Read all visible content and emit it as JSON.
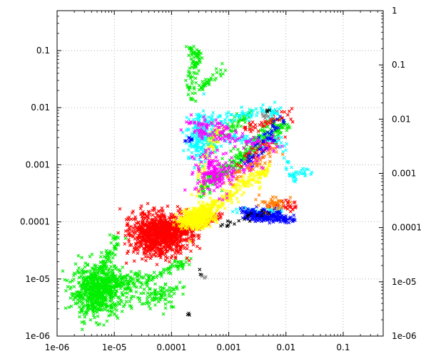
{
  "chart_data": {
    "type": "scatter",
    "x_scale": "log",
    "y_scale": "log",
    "y2_scale": "log",
    "xlim": [
      1e-06,
      0.5
    ],
    "ylim": [
      1e-06,
      0.5
    ],
    "y2lim": [
      1e-06,
      1
    ],
    "grid": true,
    "grid_style": "dotted",
    "legend": "none",
    "x_ticks": [
      {
        "value": 1e-06,
        "label": "1e-06"
      },
      {
        "value": 1e-05,
        "label": "1e-05"
      },
      {
        "value": 0.0001,
        "label": "0.0001"
      },
      {
        "value": 0.001,
        "label": "0.001"
      },
      {
        "value": 0.01,
        "label": "0.01"
      },
      {
        "value": 0.1,
        "label": "0.1"
      }
    ],
    "y_ticks": [
      {
        "value": 1e-06,
        "label": "1e-06"
      },
      {
        "value": 1e-05,
        "label": "1e-05"
      },
      {
        "value": 0.0001,
        "label": "0.0001"
      },
      {
        "value": 0.001,
        "label": "0.001"
      },
      {
        "value": 0.01,
        "label": "0.01"
      },
      {
        "value": 0.1,
        "label": "0.1"
      }
    ],
    "y2_ticks": [
      {
        "value": 1e-06,
        "label": "1e-06"
      },
      {
        "value": 1e-05,
        "label": "1e-05"
      },
      {
        "value": 0.0001,
        "label": "0.0001"
      },
      {
        "value": 0.001,
        "label": "0.001"
      },
      {
        "value": 0.01,
        "label": "0.01"
      },
      {
        "value": 0.1,
        "label": "0.1"
      },
      {
        "value": 1,
        "label": "1"
      }
    ],
    "series": [
      {
        "color": "#00ee00",
        "clusters": [
          {
            "cx": 5e-06,
            "cy": 6e-06,
            "sx": 0.22,
            "sy": 0.22,
            "n": 650
          },
          {
            "cx": 1.1e-05,
            "cy": 9e-06,
            "sx": 0.25,
            "sy": 0.1,
            "n": 120
          },
          {
            "cx": 6e-05,
            "cy": 5e-06,
            "sx": 0.2,
            "sy": 0.12,
            "n": 60
          }
        ],
        "paths": [
          {
            "points": [
              [
                3e-06,
                6e-06
              ],
              [
                6e-06,
                1.5e-05
              ],
              [
                9e-06,
                3e-05
              ],
              [
                1.2e-05,
                6e-05
              ]
            ],
            "n": 80,
            "jitter": 0.05
          },
          {
            "points": [
              [
                7e-06,
                7e-06
              ],
              [
                3e-05,
                9e-06
              ],
              [
                0.0001,
                1.5e-05
              ],
              [
                0.00022,
                2.2e-05
              ]
            ],
            "n": 90,
            "jitter": 0.05
          },
          {
            "points": [
              [
                1e-05,
                4e-06
              ],
              [
                5e-05,
                5e-06
              ],
              [
                0.00015,
                8e-06
              ]
            ],
            "n": 40,
            "jitter": 0.05
          },
          {
            "points": [
              [
                0.00022,
                0.11
              ],
              [
                0.00026,
                0.09
              ],
              [
                0.00028,
                0.07
              ],
              [
                0.00025,
                0.05
              ],
              [
                0.00022,
                0.03
              ],
              [
                0.00024,
                0.015
              ]
            ],
            "n": 90,
            "jitter": 0.05
          },
          {
            "points": [
              [
                0.0003,
                0.02
              ],
              [
                0.0005,
                0.035
              ],
              [
                0.0008,
                0.05
              ]
            ],
            "n": 35,
            "jitter": 0.04
          },
          {
            "points": [
              [
                0.0003,
                0.0004
              ],
              [
                0.0015,
                0.0012
              ],
              [
                0.005,
                0.003
              ],
              [
                0.011,
                0.005
              ]
            ],
            "n": 160,
            "jitter": 0.07
          },
          {
            "points": [
              [
                0.0003,
                0.0003
              ],
              [
                0.001,
                0.0009
              ],
              [
                0.003,
                0.0025
              ],
              [
                0.007,
                0.006
              ]
            ],
            "n": 120,
            "jitter": 0.07
          },
          {
            "points": [
              [
                0.0004,
                0.0025
              ],
              [
                0.001,
                0.0045
              ],
              [
                0.0025,
                0.008
              ]
            ],
            "n": 70,
            "jitter": 0.06
          }
        ]
      },
      {
        "color": "#ff0000",
        "clusters": [
          {
            "cx": 6e-05,
            "cy": 6e-05,
            "sx": 0.25,
            "sy": 0.18,
            "n": 900
          },
          {
            "cx": 0.00012,
            "cy": 8e-05,
            "sx": 0.18,
            "sy": 0.1,
            "n": 200
          }
        ],
        "paths": [
          {
            "points": [
              [
                0.00018,
                7e-05
              ],
              [
                0.0004,
                0.0001
              ],
              [
                0.0007,
                0.00014
              ]
            ],
            "n": 50,
            "jitter": 0.05
          },
          {
            "points": [
              [
                0.005,
                0.00018
              ],
              [
                0.01,
                0.0002
              ],
              [
                0.016,
                0.00017
              ]
            ],
            "n": 35,
            "jitter": 0.05
          },
          {
            "points": [
              [
                0.002,
                0.004
              ],
              [
                0.005,
                0.006
              ],
              [
                0.012,
                0.008
              ]
            ],
            "n": 45,
            "jitter": 0.06
          },
          {
            "points": [
              [
                0.0015,
                0.001
              ],
              [
                0.004,
                0.002
              ],
              [
                0.008,
                0.003
              ]
            ],
            "n": 40,
            "jitter": 0.05
          }
        ]
      },
      {
        "color": "#ffff00",
        "clusters": [
          {
            "cx": 0.00025,
            "cy": 0.00011,
            "sx": 0.12,
            "sy": 0.08,
            "n": 320
          },
          {
            "cx": 0.0004,
            "cy": 0.00014,
            "sx": 0.1,
            "sy": 0.08,
            "n": 120
          }
        ],
        "paths": [
          {
            "points": [
              [
                0.0003,
                0.00015
              ],
              [
                0.0015,
                0.0004
              ],
              [
                0.005,
                0.0008
              ]
            ],
            "n": 120,
            "jitter": 0.06
          },
          {
            "points": [
              [
                0.00025,
                0.0003
              ],
              [
                0.0004,
                0.0015
              ],
              [
                0.0007,
                0.005
              ]
            ],
            "n": 90,
            "jitter": 0.06
          },
          {
            "points": [
              [
                0.0003,
                0.0001
              ],
              [
                0.002,
                0.0005
              ],
              [
                0.005,
                0.0009
              ]
            ],
            "n": 60,
            "jitter": 0.06
          }
        ]
      },
      {
        "color": "#00ffff",
        "clusters": [
          {
            "cx": 0.0003,
            "cy": 0.003,
            "sx": 0.1,
            "sy": 0.2,
            "n": 160
          }
        ],
        "paths": [
          {
            "points": [
              [
                0.0003,
                0.0015
              ],
              [
                0.0012,
                0.003
              ],
              [
                0.003,
                0.0025
              ],
              [
                0.007,
                0.003
              ],
              [
                0.013,
                0.0006
              ],
              [
                0.025,
                0.0008
              ]
            ],
            "n": 110,
            "jitter": 0.05
          },
          {
            "points": [
              [
                0.0004,
                0.005
              ],
              [
                0.001,
                0.007
              ],
              [
                0.003,
                0.008
              ],
              [
                0.008,
                0.009
              ]
            ],
            "n": 90,
            "jitter": 0.06
          },
          {
            "points": [
              [
                0.001,
                0.00015
              ],
              [
                0.004,
                0.00016
              ],
              [
                0.009,
                0.00015
              ]
            ],
            "n": 40,
            "jitter": 0.04
          }
        ]
      },
      {
        "color": "#ff00ff",
        "clusters": [
          {
            "cx": 0.0005,
            "cy": 0.0008,
            "sx": 0.15,
            "sy": 0.2,
            "n": 140
          }
        ],
        "paths": [
          {
            "points": [
              [
                0.00025,
                0.004
              ],
              [
                0.0008,
                0.003
              ],
              [
                0.003,
                0.0025
              ],
              [
                0.008,
                0.002
              ]
            ],
            "n": 100,
            "jitter": 0.06
          },
          {
            "points": [
              [
                0.0005,
                0.0006
              ],
              [
                0.0015,
                0.0008
              ],
              [
                0.004,
                0.0012
              ]
            ],
            "n": 70,
            "jitter": 0.06
          },
          {
            "points": [
              [
                0.0002,
                0.006
              ],
              [
                0.0005,
                0.005
              ],
              [
                0.001,
                0.004
              ]
            ],
            "n": 40,
            "jitter": 0.06
          }
        ]
      },
      {
        "color": "#0000ff",
        "clusters": [
          {
            "cx": 0.004,
            "cy": 0.00013,
            "sx": 0.15,
            "sy": 0.05,
            "n": 150
          }
        ],
        "paths": [
          {
            "points": [
              [
                0.0015,
                0.00015
              ],
              [
                0.006,
                0.00012
              ],
              [
                0.013,
                0.00011
              ]
            ],
            "n": 80,
            "jitter": 0.04
          },
          {
            "points": [
              [
                0.002,
                0.001
              ],
              [
                0.005,
                0.003
              ],
              [
                0.008,
                0.006
              ]
            ],
            "n": 50,
            "jitter": 0.06
          },
          {
            "points": [
              [
                0.0002,
                0.0025
              ],
              [
                0.00022,
                0.003
              ]
            ],
            "n": 8,
            "jitter": 0.03
          }
        ]
      },
      {
        "color": "#ff7f00",
        "clusters": [
          {
            "cx": 0.006,
            "cy": 0.0002,
            "sx": 0.12,
            "sy": 0.06,
            "n": 40
          }
        ],
        "paths": [
          {
            "points": [
              [
                0.001,
                0.0006
              ],
              [
                0.003,
                0.001
              ],
              [
                0.008,
                0.002
              ]
            ],
            "n": 40,
            "jitter": 0.06
          }
        ]
      },
      {
        "color": "#000000",
        "clusters": [],
        "paths": [
          {
            "points": [
              [
                0.0007,
                8e-05
              ],
              [
                0.002,
                0.00012
              ],
              [
                0.005,
                0.00016
              ]
            ],
            "n": 20,
            "jitter": 0.03
          },
          {
            "points": [
              [
                0.00018,
                2.5e-06
              ],
              [
                0.00022,
                2.3e-06
              ]
            ],
            "n": 3,
            "jitter": 0.02
          },
          {
            "points": [
              [
                0.0003,
                1.3e-05
              ],
              [
                0.00032,
                1.2e-05
              ]
            ],
            "n": 3,
            "jitter": 0.02
          },
          {
            "points": [
              [
                0.0045,
                0.0085
              ],
              [
                0.0055,
                0.009
              ]
            ],
            "n": 4,
            "jitter": 0.02
          }
        ]
      },
      {
        "color": "#808080",
        "clusters": [],
        "paths": [
          {
            "points": [
              [
                0.00038,
                1.2e-05
              ],
              [
                0.00037,
                1e-05
              ]
            ],
            "n": 3,
            "jitter": 0.02
          },
          {
            "points": [
              [
                0.003,
                0.006
              ],
              [
                0.005,
                0.008
              ]
            ],
            "n": 6,
            "jitter": 0.03
          }
        ]
      }
    ]
  }
}
